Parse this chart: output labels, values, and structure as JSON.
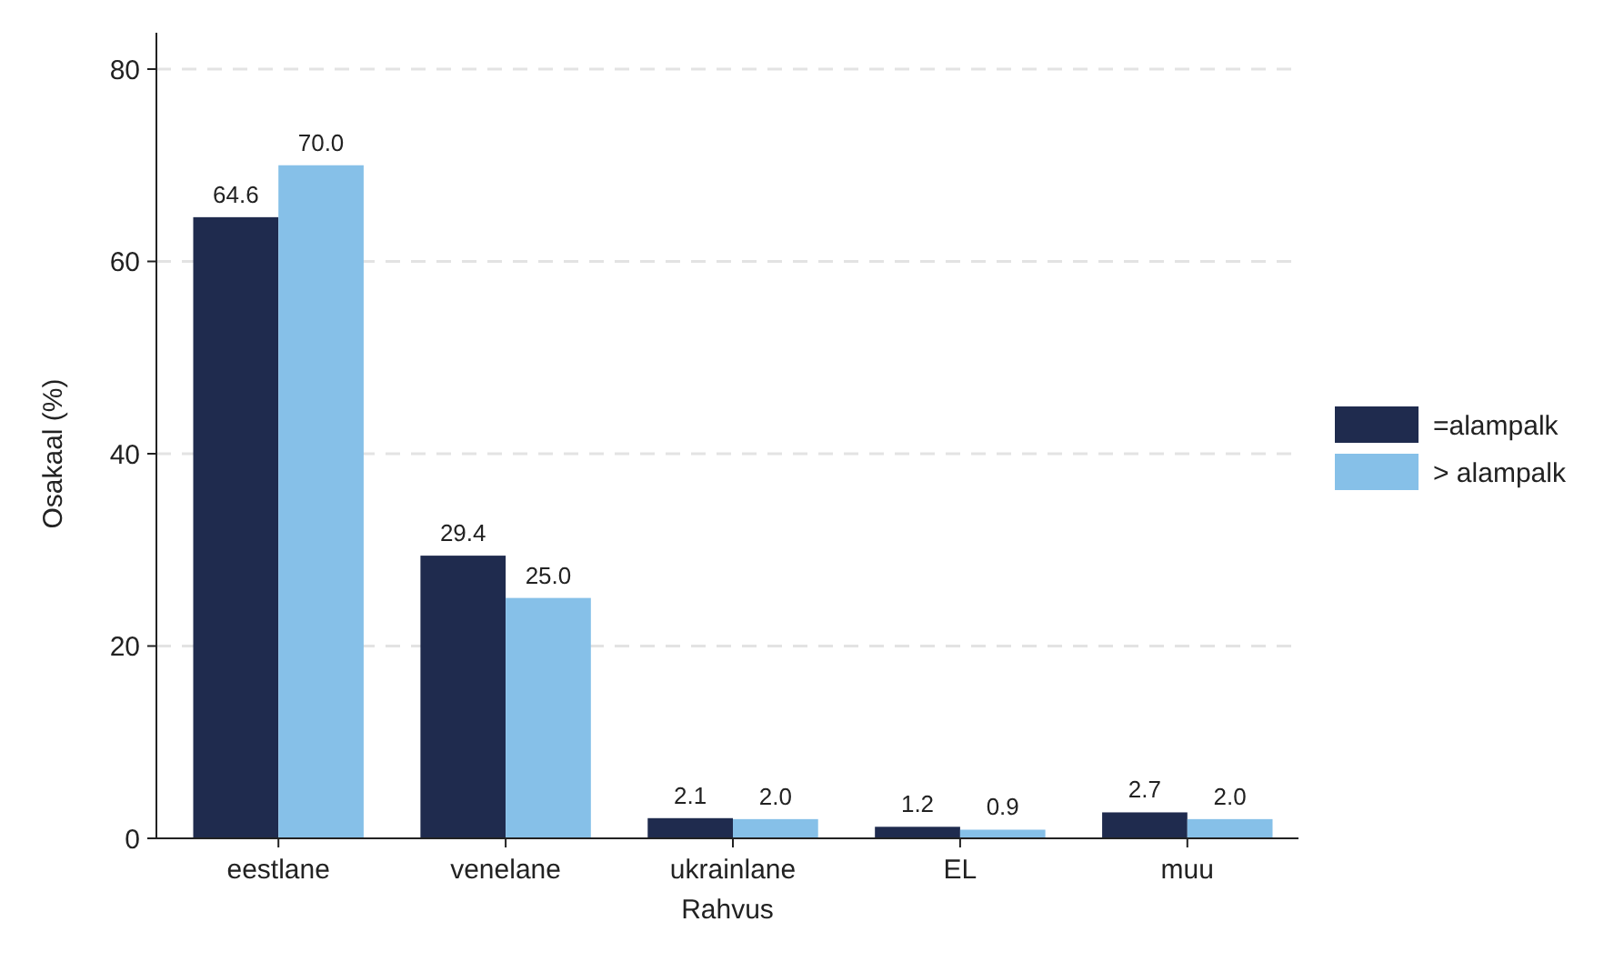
{
  "chart_data": {
    "type": "bar",
    "xlabel": "Rahvus",
    "ylabel": "Osakaal (%)",
    "categories": [
      "eestlane",
      "venelane",
      "ukrainlane",
      "EL",
      "muu"
    ],
    "series": [
      {
        "name": "=alampalk",
        "color": "#1f2b4e",
        "values": [
          64.6,
          29.4,
          2.1,
          1.2,
          2.7
        ],
        "value_labels": [
          "64.6",
          "29.4",
          "2.1",
          "1.2",
          "2.7"
        ]
      },
      {
        "name": "> alampalk",
        "color": "#86c0e8",
        "values": [
          70.0,
          25.0,
          2.0,
          0.9,
          2.0
        ],
        "value_labels": [
          "70.0",
          "25.0",
          "2.0",
          "0.9",
          "2.0"
        ]
      }
    ],
    "ylim": [
      0,
      80
    ],
    "yticks": [
      0,
      20,
      40,
      60,
      80
    ],
    "grid": "y",
    "legend": "right"
  }
}
